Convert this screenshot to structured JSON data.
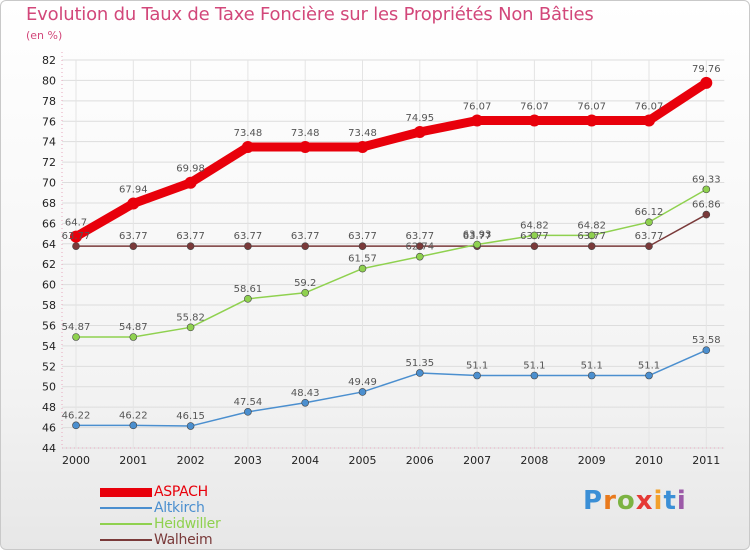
{
  "title": "Evolution du Taux de Taxe Foncière sur les Propriétés Non Bâties",
  "unit": "(en %)",
  "logo": {
    "text": "Proxiti",
    "letters": [
      "P",
      "r",
      "o",
      "x",
      "i",
      "t",
      "i"
    ],
    "colors": [
      "#3b8fd6",
      "#e97a1d",
      "#7cb342",
      "#e53935",
      "#f2a12b",
      "#3b8fd6",
      "#9c5aa8"
    ]
  },
  "chart_data": {
    "type": "line",
    "title": "Evolution du Taux de Taxe Foncière sur les Propriétés Non Bâties",
    "ylabel": "(en %)",
    "xlabel": "",
    "ylim": [
      44,
      82
    ],
    "yticks": [
      44,
      46,
      48,
      50,
      52,
      54,
      56,
      58,
      60,
      62,
      64,
      66,
      68,
      70,
      72,
      74,
      76,
      78,
      80,
      82
    ],
    "x": [
      "2000",
      "2001",
      "2002",
      "2003",
      "2004",
      "2005",
      "2006",
      "2007",
      "2008",
      "2009",
      "2010",
      "2011"
    ],
    "legend_position": "bottom-left",
    "series": [
      {
        "name": "ASPACH",
        "color": "#e8000b",
        "values": [
          64.7,
          67.94,
          69.98,
          73.48,
          73.48,
          73.48,
          74.95,
          76.07,
          76.07,
          76.07,
          76.07,
          79.76
        ],
        "labels": [
          "64.7",
          "67.94",
          "69.98",
          "73.48",
          "73.48",
          "73.48",
          "74.95",
          "76.07",
          "76.07",
          "76.07",
          "76.07",
          "79.76"
        ]
      },
      {
        "name": "Altkirch",
        "color": "#4b8fcf",
        "values": [
          46.22,
          46.22,
          46.15,
          47.54,
          48.43,
          49.49,
          51.35,
          51.1,
          51.1,
          51.1,
          51.1,
          53.58
        ],
        "labels": [
          "46.22",
          "46.22",
          "46.15",
          "47.54",
          "48.43",
          "49.49",
          "51.35",
          "51.1",
          "51.1",
          "51.1",
          "51.1",
          "53.58"
        ]
      },
      {
        "name": "Heidwiller",
        "color": "#8fd14f",
        "values": [
          54.87,
          54.87,
          55.82,
          58.61,
          59.2,
          61.57,
          62.74,
          63.93,
          64.82,
          64.82,
          66.12,
          69.33
        ],
        "labels": [
          "54.87",
          "54.87",
          "55.82",
          "58.61",
          "59.2",
          "61.57",
          "62.74",
          "63.93",
          "64.82",
          "64.82",
          "66.12",
          "69.33"
        ]
      },
      {
        "name": "Walheim",
        "color": "#7a3a3a",
        "values": [
          63.77,
          63.77,
          63.77,
          63.77,
          63.77,
          63.77,
          63.77,
          63.77,
          63.77,
          63.77,
          63.77,
          66.86
        ],
        "labels": [
          "63.77",
          "63.77",
          "63.77",
          "63.77",
          "63.77",
          "63.77",
          "63.77",
          "63.77",
          "63.77",
          "63.77",
          "63.77",
          "66.86"
        ]
      }
    ]
  }
}
